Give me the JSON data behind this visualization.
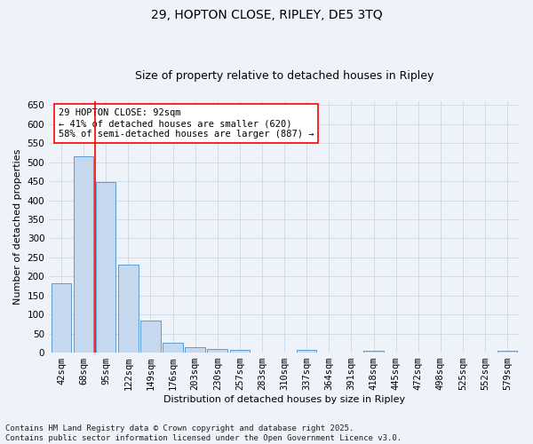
{
  "title_line1": "29, HOPTON CLOSE, RIPLEY, DE5 3TQ",
  "title_line2": "Size of property relative to detached houses in Ripley",
  "xlabel": "Distribution of detached houses by size in Ripley",
  "ylabel": "Number of detached properties",
  "categories": [
    "42sqm",
    "68sqm",
    "95sqm",
    "122sqm",
    "149sqm",
    "176sqm",
    "203sqm",
    "230sqm",
    "257sqm",
    "283sqm",
    "310sqm",
    "337sqm",
    "364sqm",
    "391sqm",
    "418sqm",
    "445sqm",
    "472sqm",
    "498sqm",
    "525sqm",
    "552sqm",
    "579sqm"
  ],
  "values": [
    182,
    515,
    449,
    230,
    85,
    27,
    14,
    9,
    7,
    0,
    0,
    8,
    0,
    0,
    4,
    0,
    0,
    0,
    0,
    0,
    5
  ],
  "bar_color": "#c5d8ed",
  "bar_edge_color": "#5b9bd5",
  "grid_color": "#d0d8e8",
  "background_color": "#eef2f9",
  "ref_line_color": "red",
  "ref_line_x": 1.5,
  "annotation_text": "29 HOPTON CLOSE: 92sqm\n← 41% of detached houses are smaller (620)\n58% of semi-detached houses are larger (887) →",
  "footnote": "Contains HM Land Registry data © Crown copyright and database right 2025.\nContains public sector information licensed under the Open Government Licence v3.0.",
  "ylim": [
    0,
    660
  ],
  "yticks": [
    0,
    50,
    100,
    150,
    200,
    250,
    300,
    350,
    400,
    450,
    500,
    550,
    600,
    650
  ],
  "title_fontsize": 10,
  "subtitle_fontsize": 9,
  "axis_label_fontsize": 8,
  "tick_fontsize": 7.5,
  "annotation_fontsize": 7.5,
  "footnote_fontsize": 6.5
}
